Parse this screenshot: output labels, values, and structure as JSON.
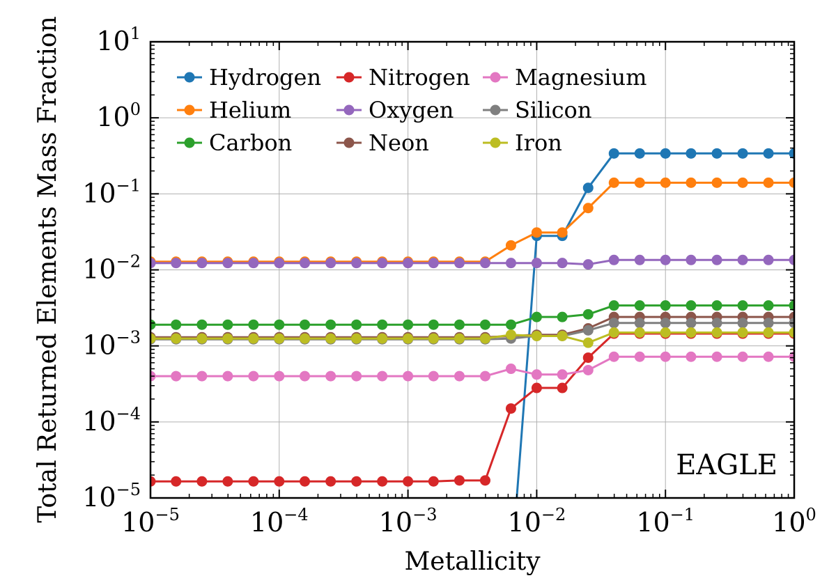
{
  "chart_data": {
    "type": "line",
    "title": "",
    "xlabel": "Metallicity",
    "ylabel": "Total Returned Elements Mass Fraction",
    "xscale": "log",
    "yscale": "log",
    "xlim": [
      1e-05,
      1
    ],
    "ylim": [
      1e-05,
      10
    ],
    "grid": true,
    "legend_position": "top-left",
    "annotation": "EAGLE",
    "x_ticks": [
      {
        "base": "10",
        "exp": "−5",
        "value": 1e-05
      },
      {
        "base": "10",
        "exp": "−4",
        "value": 0.0001
      },
      {
        "base": "10",
        "exp": "−3",
        "value": 0.001
      },
      {
        "base": "10",
        "exp": "−2",
        "value": 0.01
      },
      {
        "base": "10",
        "exp": "−1",
        "value": 0.1
      },
      {
        "base": "10",
        "exp": "0",
        "value": 1
      }
    ],
    "y_ticks": [
      {
        "base": "10",
        "exp": "−5",
        "value": 1e-05
      },
      {
        "base": "10",
        "exp": "−4",
        "value": 0.0001
      },
      {
        "base": "10",
        "exp": "−3",
        "value": 0.001
      },
      {
        "base": "10",
        "exp": "−2",
        "value": 0.01
      },
      {
        "base": "10",
        "exp": "−1",
        "value": 0.1
      },
      {
        "base": "10",
        "exp": "0",
        "value": 1
      },
      {
        "base": "10",
        "exp": "1",
        "value": 10
      }
    ],
    "x": [
      1e-05,
      1.58e-05,
      2.51e-05,
      3.98e-05,
      6.31e-05,
      0.0001,
      0.000158,
      0.000251,
      0.000398,
      0.000631,
      0.001,
      0.00158,
      0.00251,
      0.00398,
      0.00631,
      0.01,
      0.0158,
      0.0251,
      0.0398,
      0.0631,
      0.1,
      0.158,
      0.251,
      0.398,
      0.631,
      1
    ],
    "series": [
      {
        "name": "Hydrogen",
        "color": "#1f77b4",
        "values": [
          null,
          null,
          null,
          null,
          null,
          null,
          null,
          null,
          null,
          null,
          null,
          null,
          null,
          null,
          1e-06,
          0.028,
          0.028,
          0.12,
          0.34,
          0.34,
          0.34,
          0.34,
          0.34,
          0.34,
          0.34,
          0.34
        ]
      },
      {
        "name": "Helium",
        "color": "#ff7f0e",
        "values": [
          0.0128,
          0.0128,
          0.0128,
          0.0128,
          0.0128,
          0.0128,
          0.0128,
          0.0128,
          0.0128,
          0.0128,
          0.0128,
          0.0128,
          0.0128,
          0.0128,
          0.021,
          0.031,
          0.031,
          0.065,
          0.14,
          0.14,
          0.14,
          0.14,
          0.14,
          0.14,
          0.14,
          0.14
        ]
      },
      {
        "name": "Carbon",
        "color": "#2ca02c",
        "values": [
          0.0019,
          0.0019,
          0.0019,
          0.0019,
          0.0019,
          0.0019,
          0.0019,
          0.0019,
          0.0019,
          0.0019,
          0.0019,
          0.0019,
          0.0019,
          0.0019,
          0.0019,
          0.0024,
          0.0024,
          0.0026,
          0.0034,
          0.0034,
          0.0034,
          0.0034,
          0.0034,
          0.0034,
          0.0034,
          0.0034
        ]
      },
      {
        "name": "Nitrogen",
        "color": "#d62728",
        "values": [
          1.65e-05,
          1.65e-05,
          1.65e-05,
          1.65e-05,
          1.65e-05,
          1.65e-05,
          1.65e-05,
          1.65e-05,
          1.65e-05,
          1.65e-05,
          1.65e-05,
          1.65e-05,
          1.7e-05,
          1.7e-05,
          0.00015,
          0.00028,
          0.00028,
          0.0007,
          0.00145,
          0.00145,
          0.00145,
          0.00145,
          0.00145,
          0.00145,
          0.00145,
          0.00145
        ]
      },
      {
        "name": "Oxygen",
        "color": "#9467bd",
        "values": [
          0.0123,
          0.0123,
          0.0123,
          0.0123,
          0.0123,
          0.0123,
          0.0123,
          0.0123,
          0.0123,
          0.0123,
          0.0123,
          0.0123,
          0.0123,
          0.0123,
          0.0123,
          0.0123,
          0.0123,
          0.0118,
          0.0135,
          0.0135,
          0.0135,
          0.0135,
          0.0135,
          0.0135,
          0.0135,
          0.0135
        ]
      },
      {
        "name": "Neon",
        "color": "#8c564b",
        "values": [
          0.0013,
          0.0013,
          0.0013,
          0.0013,
          0.0013,
          0.0013,
          0.0013,
          0.0013,
          0.0013,
          0.0013,
          0.0013,
          0.0013,
          0.0013,
          0.0013,
          0.00135,
          0.0014,
          0.0014,
          0.0017,
          0.0024,
          0.0024,
          0.0024,
          0.0024,
          0.0024,
          0.0024,
          0.0024,
          0.0024
        ]
      },
      {
        "name": "Magnesium",
        "color": "#e377c2",
        "values": [
          0.0004,
          0.0004,
          0.0004,
          0.0004,
          0.0004,
          0.0004,
          0.0004,
          0.0004,
          0.0004,
          0.0004,
          0.0004,
          0.0004,
          0.0004,
          0.0004,
          0.0005,
          0.00042,
          0.00042,
          0.00048,
          0.00072,
          0.00072,
          0.00072,
          0.00072,
          0.00072,
          0.00072,
          0.00072,
          0.00072
        ]
      },
      {
        "name": "Silicon",
        "color": "#7f7f7f",
        "values": [
          0.00122,
          0.00122,
          0.00122,
          0.00122,
          0.00122,
          0.00122,
          0.00122,
          0.00122,
          0.00122,
          0.00122,
          0.00122,
          0.00122,
          0.00122,
          0.00122,
          0.00125,
          0.00135,
          0.00135,
          0.0016,
          0.002,
          0.002,
          0.002,
          0.002,
          0.002,
          0.002,
          0.002,
          0.002
        ]
      },
      {
        "name": "Iron",
        "color": "#bcbd22",
        "values": [
          0.00125,
          0.00125,
          0.00125,
          0.00125,
          0.00125,
          0.00125,
          0.00125,
          0.00125,
          0.00125,
          0.00125,
          0.00125,
          0.00125,
          0.00125,
          0.00125,
          0.0014,
          0.00135,
          0.00135,
          0.0011,
          0.0015,
          0.0015,
          0.0015,
          0.0015,
          0.0015,
          0.0015,
          0.0015,
          0.0015
        ]
      }
    ]
  }
}
